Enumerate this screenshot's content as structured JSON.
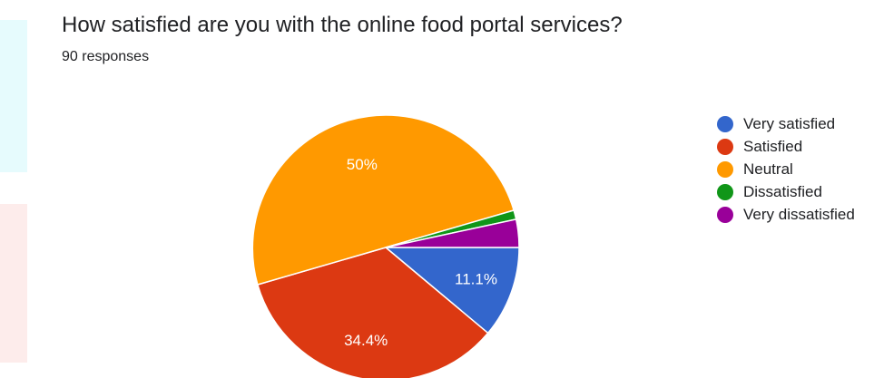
{
  "question": "How satisfied are you with the online food portal services?",
  "responses": "90 responses",
  "chart_data": {
    "type": "pie",
    "legend_position": "right",
    "series": [
      {
        "name": "Very satisfied",
        "percent": 11.1,
        "label": "11.1%",
        "color": "#3366cc"
      },
      {
        "name": "Satisfied",
        "percent": 34.4,
        "label": "34.4%",
        "color": "#dc3912"
      },
      {
        "name": "Neutral",
        "percent": 50,
        "label": "50%",
        "color": "#ff9900"
      },
      {
        "name": "Dissatisfied",
        "percent": 1.1,
        "label": "",
        "color": "#109618"
      },
      {
        "name": "Very dissatisfied",
        "percent": 3.4,
        "label": "",
        "color": "#990099"
      }
    ]
  }
}
